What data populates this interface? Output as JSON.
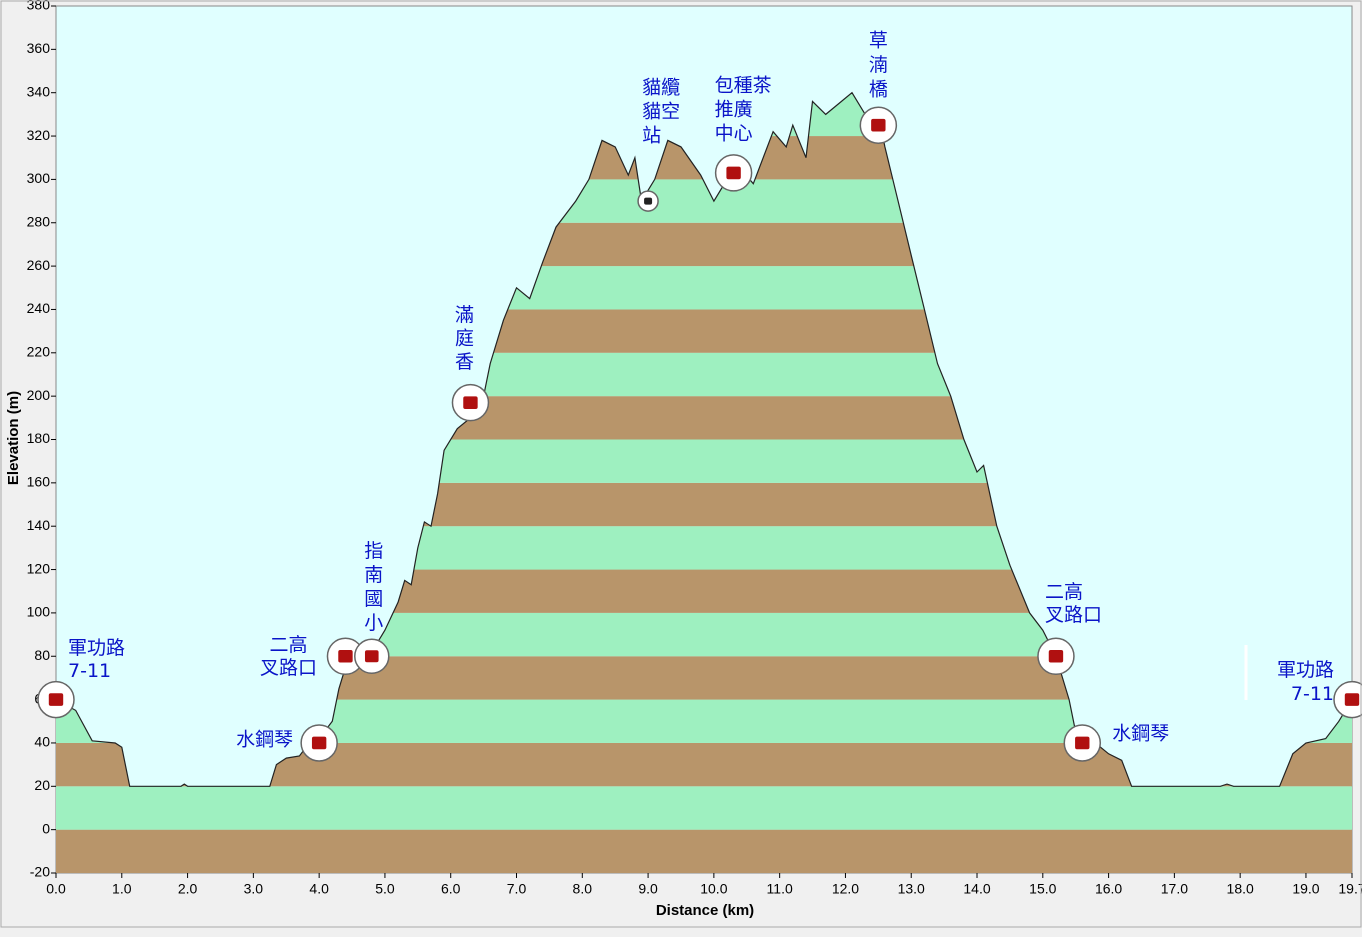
{
  "chart_data": {
    "type": "area",
    "xlabel": "Distance   (km)",
    "ylabel": "Elevation (m)",
    "x": [
      0,
      0.3,
      0.55,
      0.9,
      1.0,
      1.12,
      1.9,
      1.95,
      2.0,
      3.25,
      3.35,
      3.5,
      3.7,
      3.8,
      4.0,
      4.2,
      4.3,
      4.4,
      4.6,
      4.8,
      5.0,
      5.2,
      5.3,
      5.4,
      5.5,
      5.6,
      5.7,
      5.8,
      5.9,
      6.1,
      6.3,
      6.5,
      6.6,
      6.8,
      7.0,
      7.2,
      7.4,
      7.6,
      7.9,
      8.1,
      8.3,
      8.5,
      8.7,
      8.8,
      8.9,
      9.1,
      9.3,
      9.5,
      9.8,
      10.0,
      10.2,
      10.4,
      10.6,
      10.9,
      11.1,
      11.2,
      11.4,
      11.5,
      11.7,
      11.9,
      12.1,
      12.3,
      12.5,
      12.6,
      12.8,
      13.0,
      13.2,
      13.4,
      13.6,
      13.8,
      14.0,
      14.1,
      14.3,
      14.5,
      14.8,
      15.0,
      15.2,
      15.4,
      15.5,
      15.8,
      16.0,
      16.2,
      16.35,
      17.7,
      17.8,
      17.9,
      18.6,
      18.8,
      19.0,
      19.3,
      19.5,
      19.7
    ],
    "values": [
      60,
      55,
      41,
      40,
      38,
      20,
      20,
      21,
      20,
      20,
      30,
      33,
      34,
      38,
      42,
      50,
      65,
      75,
      80,
      82,
      92,
      105,
      115,
      113,
      130,
      142,
      140,
      155,
      175,
      185,
      190,
      200,
      215,
      235,
      250,
      245,
      262,
      278,
      290,
      300,
      318,
      315,
      302,
      310,
      290,
      300,
      318,
      315,
      302,
      290,
      300,
      305,
      298,
      322,
      315,
      325,
      310,
      336,
      330,
      335,
      340,
      330,
      330,
      315,
      290,
      265,
      240,
      215,
      200,
      180,
      165,
      168,
      140,
      122,
      100,
      92,
      80,
      60,
      45,
      40,
      35,
      32,
      20,
      20,
      21,
      20,
      20,
      35,
      40,
      42,
      50,
      60
    ],
    "colors": [
      "#b8956a",
      "#9ef0c0"
    ],
    "xlim": [
      0,
      19.7
    ],
    "xticks": [
      {
        "value": 0,
        "label": "0.0"
      },
      {
        "value": 1,
        "label": "1.0"
      },
      {
        "value": 2,
        "label": "2.0"
      },
      {
        "value": 3,
        "label": "3.0"
      },
      {
        "value": 4,
        "label": "4.0"
      },
      {
        "value": 5,
        "label": "5.0"
      },
      {
        "value": 6,
        "label": "6.0"
      },
      {
        "value": 7,
        "label": "7.0"
      },
      {
        "value": 8,
        "label": "8.0"
      },
      {
        "value": 9,
        "label": "9.0"
      },
      {
        "value": 10,
        "label": "10.0"
      },
      {
        "value": 11,
        "label": "11.0"
      },
      {
        "value": 12,
        "label": "12.0"
      },
      {
        "value": 13,
        "label": "13.0"
      },
      {
        "value": 14,
        "label": "14.0"
      },
      {
        "value": 15,
        "label": "15.0"
      },
      {
        "value": 16,
        "label": "16.0"
      },
      {
        "value": 17,
        "label": "17.0"
      },
      {
        "value": 18,
        "label": "18.0"
      },
      {
        "value": 19,
        "label": "19.0"
      },
      19.7
    ],
    "ylim": [
      -20,
      380
    ],
    "yticks": [
      -20,
      0,
      20,
      40,
      60,
      80,
      100,
      120,
      140,
      160,
      180,
      200,
      220,
      240,
      260,
      280,
      300,
      320,
      340,
      360,
      380
    ],
    "annotations": [
      {
        "lines": [
          "軍功路",
          "7-11"
        ],
        "x": 0.0,
        "y": 60
      },
      {
        "lines": [
          "水鋼琴"
        ],
        "x": 4.0,
        "y": 40
      },
      {
        "lines": [
          "二高",
          "叉路口"
        ],
        "x": 4.4,
        "y": 80
      },
      {
        "lines": [
          "指",
          "南",
          "國",
          "小"
        ],
        "x": 4.8,
        "y": 80
      },
      {
        "lines": [
          "滿",
          "庭",
          "香"
        ],
        "x": 6.3,
        "y": 197
      },
      {
        "lines": [
          "貓纜",
          "貓空",
          "站"
        ],
        "x": 9.0,
        "y": 290
      },
      {
        "lines": [
          "包種茶",
          "推廣",
          "中心"
        ],
        "x": 10.3,
        "y": 303
      },
      {
        "lines": [
          "草",
          "湳",
          "橋"
        ],
        "x": 12.5,
        "y": 325
      },
      {
        "lines": [
          "二高",
          "叉路口"
        ],
        "x": 15.2,
        "y": 80
      },
      {
        "lines": [
          "水鋼琴"
        ],
        "x": 15.6,
        "y": 40
      },
      {
        "lines": [
          "軍功路",
          "7-11"
        ],
        "x": 19.7,
        "y": 60
      }
    ]
  }
}
